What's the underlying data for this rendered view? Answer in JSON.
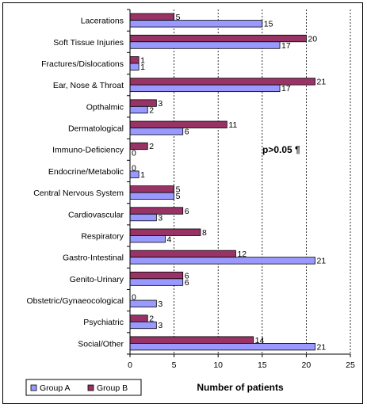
{
  "chart_data": {
    "type": "bar",
    "orientation": "horizontal",
    "categories": [
      "Lacerations",
      "Soft Tissue Injuries",
      "Fractures/Dislocations",
      "Ear, Nose & Throat",
      "Opthalmic",
      "Dermatological",
      "Immuno-Deficiency",
      "Endocrine/Metabolic",
      "Central Nervous System",
      "Cardiovascular",
      "Respiratory",
      "Gastro-Intestinal",
      "Genito-Urinary",
      "Obstetric/Gynaeocological",
      "Psychiatric",
      "Social/Other"
    ],
    "series": [
      {
        "name": "Group A",
        "color": "#9999ff",
        "values": [
          15,
          17,
          1,
          17,
          2,
          6,
          0,
          1,
          5,
          3,
          4,
          21,
          6,
          3,
          3,
          21
        ]
      },
      {
        "name": "Group B",
        "color": "#993366",
        "values": [
          5,
          20,
          1,
          21,
          3,
          11,
          2,
          0,
          5,
          6,
          8,
          12,
          6,
          0,
          2,
          14
        ]
      }
    ],
    "xlabel": "Number of patients",
    "xlim": [
      0,
      25
    ],
    "xticks": [
      "0",
      "5",
      "10",
      "15",
      "20",
      "25"
    ],
    "grid": "vertical dashed",
    "legend": "bottom-left",
    "annotation": "p>0.05 ¶"
  }
}
